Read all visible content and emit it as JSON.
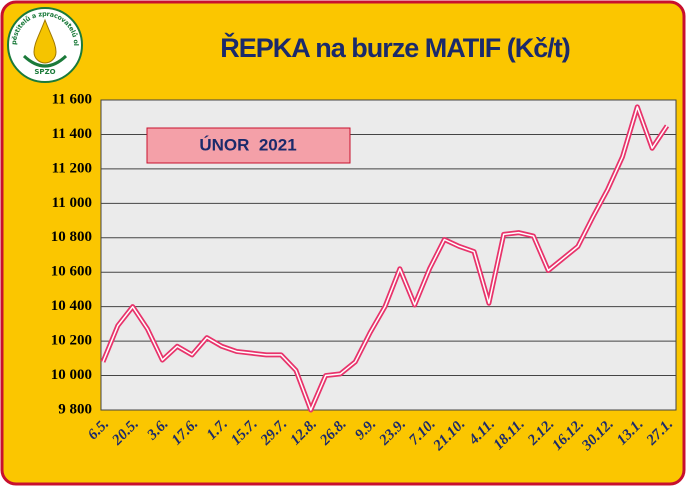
{
  "logo": {
    "text": "Svaz pěstitelů a zpracovatelů olejnin",
    "abbr": "SPZO"
  },
  "chart_data": {
    "type": "line",
    "title": "ŘEPKA na burze MATIF (Kč/t)",
    "annotation": "ÚNOR  2021",
    "categories": [
      "6.5.",
      null,
      "20.5.",
      null,
      "3.6.",
      null,
      "17.6.",
      null,
      "1.7.",
      null,
      "15.7.",
      null,
      "29.7.",
      null,
      "12.8.",
      null,
      "26.8.",
      null,
      "9.9.",
      null,
      "23.9.",
      null,
      "7.10.",
      null,
      "21.10.",
      null,
      "4.11.",
      null,
      "18.11.",
      null,
      "2.12.",
      null,
      "16.12.",
      null,
      "30.12.",
      null,
      "13.1.",
      null,
      "27.1."
    ],
    "series": [
      {
        "name": null,
        "color": "#e8336b",
        "values": [
          10080,
          10290,
          10400,
          10270,
          10090,
          10170,
          10120,
          10220,
          10170,
          10140,
          10130,
          10120,
          10120,
          10030,
          9800,
          10000,
          10010,
          10080,
          10250,
          10400,
          10620,
          10410,
          10620,
          10790,
          10750,
          10720,
          10420,
          10820,
          10830,
          10810,
          10610,
          10680,
          10750,
          10920,
          11080,
          11270,
          11560,
          11320,
          11450
        ]
      }
    ],
    "ylim": [
      9800,
      11600
    ],
    "yticks": [
      {
        "value": 9800,
        "label": "9 800"
      },
      {
        "value": 10000,
        "label": "10 000"
      },
      {
        "value": 10200,
        "label": "10 200"
      },
      {
        "value": 10400,
        "label": "10 400"
      },
      {
        "value": 10600,
        "label": "10 600"
      },
      {
        "value": 10800,
        "label": "10 800"
      },
      {
        "value": 11000,
        "label": "11 000"
      },
      {
        "value": 11200,
        "label": "11 200"
      },
      {
        "value": 11400,
        "label": "11 400"
      },
      {
        "value": 11600,
        "label": "11 600"
      }
    ],
    "grid": true
  }
}
